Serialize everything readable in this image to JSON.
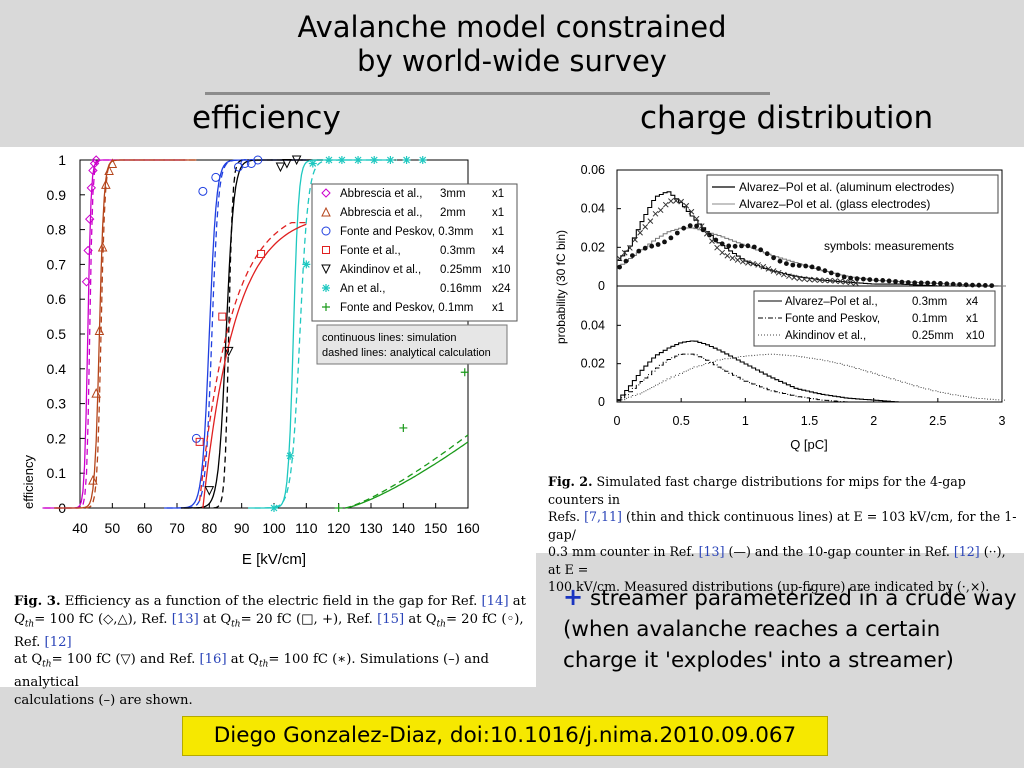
{
  "slide": {
    "title_line1": "Avalanche model constrained",
    "title_line2": "by world-wide survey",
    "heading_left": "efficiency",
    "heading_right": "charge distribution",
    "note_plus": "+",
    "note_text": "streamer parameterized in a crude way (when avalanche reaches a certain charge it 'explodes' into a streamer)",
    "reference": "Diego Gonzalez-Diaz, doi:10.1016/j.nima.2010.09.067"
  },
  "captions": {
    "fig3": {
      "label": "Fig. 3.",
      "p1": "Efficiency as a function of the electric field in the gap for Ref.",
      "r14": "[14]",
      "p2": "at",
      "l2a": "Q",
      "l2sub": "th",
      "l2b": "= 100 fC (◇,△), Ref.",
      "r13": "[13]",
      "l2c": "at Q",
      "l2sub2": "th",
      "l2d": "= 20 fC (□, +), Ref.",
      "r15": "[15]",
      "l2e": "at Q",
      "l2sub3": "th",
      "l2f": "= 20 fC (◦), Ref.",
      "r12": "[12]",
      "l3a": "at Q",
      "l3sub": "th",
      "l3b": "= 100 fC (▽) and Ref.",
      "r16": "[16]",
      "l3c": "at Q",
      "l3sub2": "th",
      "l3d": "= 100 fC (∗). Simulations (–) and analytical",
      "l4": "calculations (–) are shown."
    },
    "fig2": {
      "label": "Fig. 2.",
      "l1": "Simulated fast charge distributions for mips for the 4-gap counters in",
      "l2a": "Refs.",
      "r711": "[7,11]",
      "l2b": "(thin and thick continuous lines) at E = 103 kV/cm, for the 1-gap/",
      "l3a": "0.3 mm counter in Ref.",
      "r13": "[13]",
      "l3b": "(—) and the 10-gap counter in Ref.",
      "r12": "[12]",
      "l3c": "(··), at E =",
      "l4": "100 kV/cm. Measured distributions (up-figure) are indicated by (·,×)."
    }
  },
  "chart_data": [
    {
      "type": "line",
      "xlabel": "E [kV/cm]",
      "ylabel": "efficiency",
      "xlim": [
        40,
        160
      ],
      "ylim": [
        0,
        1
      ],
      "xticks": [
        "40",
        "50",
        "60",
        "70",
        "80",
        "90",
        "100",
        "110",
        "120",
        "130",
        "140",
        "150",
        "160"
      ],
      "yticks": [
        "0",
        "0.1",
        "0.2",
        "0.3",
        "0.4",
        "0.5",
        "0.6",
        "0.7",
        "0.8",
        "0.9",
        "1"
      ],
      "legend": [
        {
          "marker": "◇",
          "label": "Abbrescia et al.,",
          "size": "3mm",
          "gaps": "x1",
          "color": "#cc00cc"
        },
        {
          "marker": "△",
          "label": "Abbrescia et al.,",
          "size": "2mm",
          "gaps": "x1",
          "color": "#b5451b"
        },
        {
          "marker": "○",
          "label": "Fonte and Peskov, 0.3mm",
          "size": "",
          "gaps": "x1",
          "color": "#1f3fe0"
        },
        {
          "marker": "□",
          "label": "Fonte et al.,",
          "size": "0.3mm",
          "gaps": "x4",
          "color": "#e02020"
        },
        {
          "marker": "▽",
          "label": "Akindinov et al.,",
          "size": "0.25mm",
          "gaps": "x10",
          "color": "#000000"
        },
        {
          "marker": "✳",
          "label": "An et al.,",
          "size": "0.16mm",
          "gaps": "x24",
          "color": "#1ec8c0"
        },
        {
          "marker": "+",
          "label": "Fonte and Peskov, 0.1mm",
          "size": "",
          "gaps": "x1",
          "color": "#1a9a1a"
        }
      ],
      "note_line1": "continuous lines: simulation",
      "note_line2": "dashed lines: analytical calculation",
      "series": [
        {
          "color": "#cc00cc",
          "marker": "diamond",
          "x": [
            42,
            42.5,
            43,
            43.5,
            44,
            44.5,
            45
          ],
          "y": [
            0.65,
            0.74,
            0.83,
            0.92,
            0.97,
            0.99,
            1.0
          ]
        },
        {
          "color": "#b5451b",
          "marker": "triangle",
          "x": [
            44,
            45,
            46,
            47,
            48,
            49,
            50
          ],
          "y": [
            0.08,
            0.33,
            0.51,
            0.75,
            0.93,
            0.97,
            0.99
          ]
        },
        {
          "color": "#1f3fe0",
          "marker": "circle",
          "x": [
            76,
            78,
            82,
            89,
            91,
            93,
            95
          ],
          "y": [
            0.2,
            0.91,
            0.95,
            0.98,
            0.99,
            0.99,
            1.0
          ]
        },
        {
          "color": "#e02020",
          "marker": "square",
          "x": [
            77,
            84,
            96
          ],
          "y": [
            0.19,
            0.55,
            0.73
          ]
        },
        {
          "color": "#000000",
          "marker": "tri-down",
          "x": [
            80,
            86,
            102,
            104,
            107
          ],
          "y": [
            0.05,
            0.45,
            0.98,
            0.99,
            1.0
          ]
        },
        {
          "color": "#1ec8c0",
          "marker": "star",
          "x": [
            100,
            105,
            110,
            112,
            117,
            121,
            126,
            131,
            136,
            141,
            146
          ],
          "y": [
            0.0,
            0.15,
            0.7,
            0.99,
            1.0,
            1.0,
            1.0,
            1.0,
            1.0,
            1.0,
            1.0
          ]
        },
        {
          "color": "#1a9a1a",
          "marker": "plus",
          "x": [
            120,
            140,
            159
          ],
          "y": [
            0.0,
            0.23,
            0.39
          ]
        }
      ]
    },
    {
      "type": "line",
      "xlabel": "Q [pC]",
      "ylabel": "probability (30 fC bin)",
      "xlim": [
        0,
        3
      ],
      "xticks": [
        "0",
        "0.5",
        "1",
        "1.5",
        "2",
        "2.5",
        "3"
      ],
      "top": {
        "ylim": [
          0,
          0.06
        ],
        "yticks": [
          "0",
          "0.02",
          "0.04",
          "0.06"
        ],
        "legend": [
          "Alvarez–Pol et al. (aluminum electrodes)",
          "Alvarez–Pol et al. (glass electrodes)"
        ],
        "annotation": "symbols: measurements",
        "series": [
          {
            "name": "Alvarez–Pol et al. (aluminum electrodes)",
            "x": [
              0,
              0.1,
              0.2,
              0.3,
              0.4,
              0.5,
              0.6,
              0.8,
              1.0,
              1.2,
              1.4,
              1.6,
              1.8,
              2.0,
              2.2,
              2.5,
              2.8,
              3.0
            ],
            "y": [
              0.012,
              0.02,
              0.034,
              0.046,
              0.049,
              0.043,
              0.035,
              0.022,
              0.013,
              0.008,
              0.005,
              0.003,
              0.002,
              0.001,
              0.001,
              0.0,
              0.0,
              0.0
            ]
          },
          {
            "name": "Alvarez–Pol et al. (glass electrodes)",
            "x": [
              0,
              0.1,
              0.2,
              0.3,
              0.4,
              0.5,
              0.6,
              0.7,
              0.8,
              1.0,
              1.2,
              1.4,
              1.6,
              1.8,
              2.0,
              2.3,
              2.6,
              3.0
            ],
            "y": [
              0.009,
              0.014,
              0.019,
              0.024,
              0.028,
              0.03,
              0.03,
              0.028,
              0.026,
              0.021,
              0.016,
              0.012,
              0.008,
              0.005,
              0.003,
              0.002,
              0.001,
              0.0
            ]
          }
        ]
      },
      "bottom": {
        "ylim": [
          0,
          0.06
        ],
        "yticks": [
          "0",
          "0.02",
          "0.04"
        ],
        "legend": [
          {
            "label": "Alvarez–Pol et al.,",
            "size": "0.3mm",
            "gaps": "x4"
          },
          {
            "label": "Fonte and Peskov,",
            "size": "0.1mm",
            "gaps": "x1"
          },
          {
            "label": "Akindinov et al.,",
            "size": "0.25mm",
            "gaps": "x10"
          }
        ],
        "series": [
          {
            "name": "Alvarez–Pol et al., 0.3mm x4",
            "x": [
              0,
              0.1,
              0.2,
              0.3,
              0.4,
              0.5,
              0.6,
              0.7,
              0.8,
              1.0,
              1.2,
              1.4,
              1.6,
              1.8,
              2.0,
              2.2
            ],
            "y": [
              0.0,
              0.008,
              0.017,
              0.024,
              0.028,
              0.031,
              0.032,
              0.03,
              0.027,
              0.02,
              0.013,
              0.007,
              0.004,
              0.002,
              0.001,
              0.0
            ]
          },
          {
            "name": "Fonte and Peskov, 0.1mm x1",
            "x": [
              0,
              0.1,
              0.2,
              0.3,
              0.4,
              0.5,
              0.6,
              0.7,
              0.8,
              1.0,
              1.2,
              1.4,
              1.6,
              1.8,
              2.0
            ],
            "y": [
              0.0,
              0.005,
              0.011,
              0.017,
              0.022,
              0.025,
              0.025,
              0.022,
              0.018,
              0.011,
              0.006,
              0.003,
              0.001,
              0.0,
              0.0
            ]
          },
          {
            "name": "Akindinov et al., 0.25mm x10",
            "x": [
              0,
              0.2,
              0.4,
              0.6,
              0.8,
              1.0,
              1.2,
              1.4,
              1.6,
              1.8,
              2.0,
              2.2,
              2.4,
              2.6,
              2.8,
              3.0
            ],
            "y": [
              0.0,
              0.005,
              0.012,
              0.018,
              0.022,
              0.024,
              0.025,
              0.024,
              0.022,
              0.019,
              0.015,
              0.011,
              0.007,
              0.004,
              0.002,
              0.001
            ]
          }
        ]
      }
    }
  ]
}
